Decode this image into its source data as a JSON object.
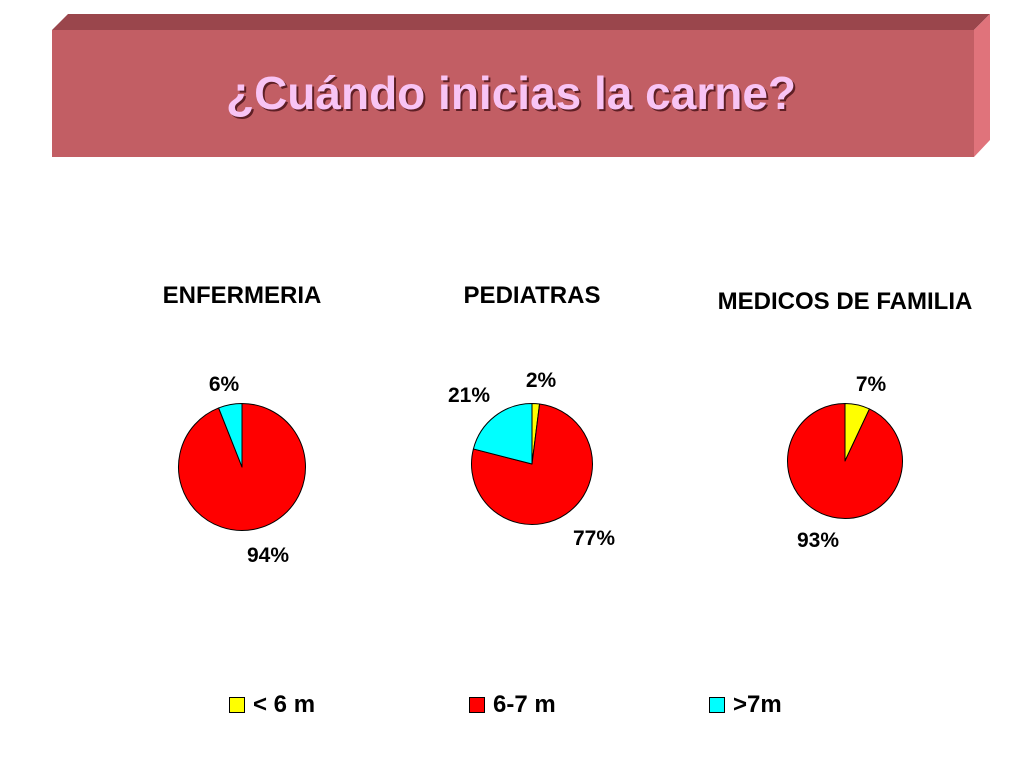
{
  "title": "¿Cuándo inicias la carne?",
  "colors": {
    "banner_front": "#c25e64",
    "banner_top": "#9a464c",
    "banner_side": "#e0737b",
    "title_text": "#f8c4f4"
  },
  "chart_data": [
    {
      "type": "pie",
      "title": "ENFERMERIA",
      "slices": [
        {
          "label": "6-7 m",
          "value": 94,
          "value_label": "94%",
          "color": "#ff0000"
        },
        {
          "label": ">7m",
          "value": 6,
          "value_label": "6%",
          "color": "#00ffff"
        }
      ]
    },
    {
      "type": "pie",
      "title": "PEDIATRAS",
      "slices": [
        {
          "label": "< 6 m",
          "value": 2,
          "value_label": "2%",
          "color": "#ffff00"
        },
        {
          "label": "6-7 m",
          "value": 77,
          "value_label": "77%",
          "color": "#ff0000"
        },
        {
          "label": ">7m",
          "value": 21,
          "value_label": "21%",
          "color": "#00ffff"
        }
      ]
    },
    {
      "type": "pie",
      "title": "MEDICOS DE FAMILIA",
      "slices": [
        {
          "label": "< 6 m",
          "value": 7,
          "value_label": "7%",
          "color": "#ffff00"
        },
        {
          "label": "6-7 m",
          "value": 93,
          "value_label": "93%",
          "color": "#ff0000"
        }
      ]
    }
  ],
  "legend": [
    {
      "label": "< 6 m",
      "color": "#ffff00"
    },
    {
      "label": "6-7 m",
      "color": "#ff0000"
    },
    {
      "label": ">7m",
      "color": "#00ffff"
    }
  ]
}
